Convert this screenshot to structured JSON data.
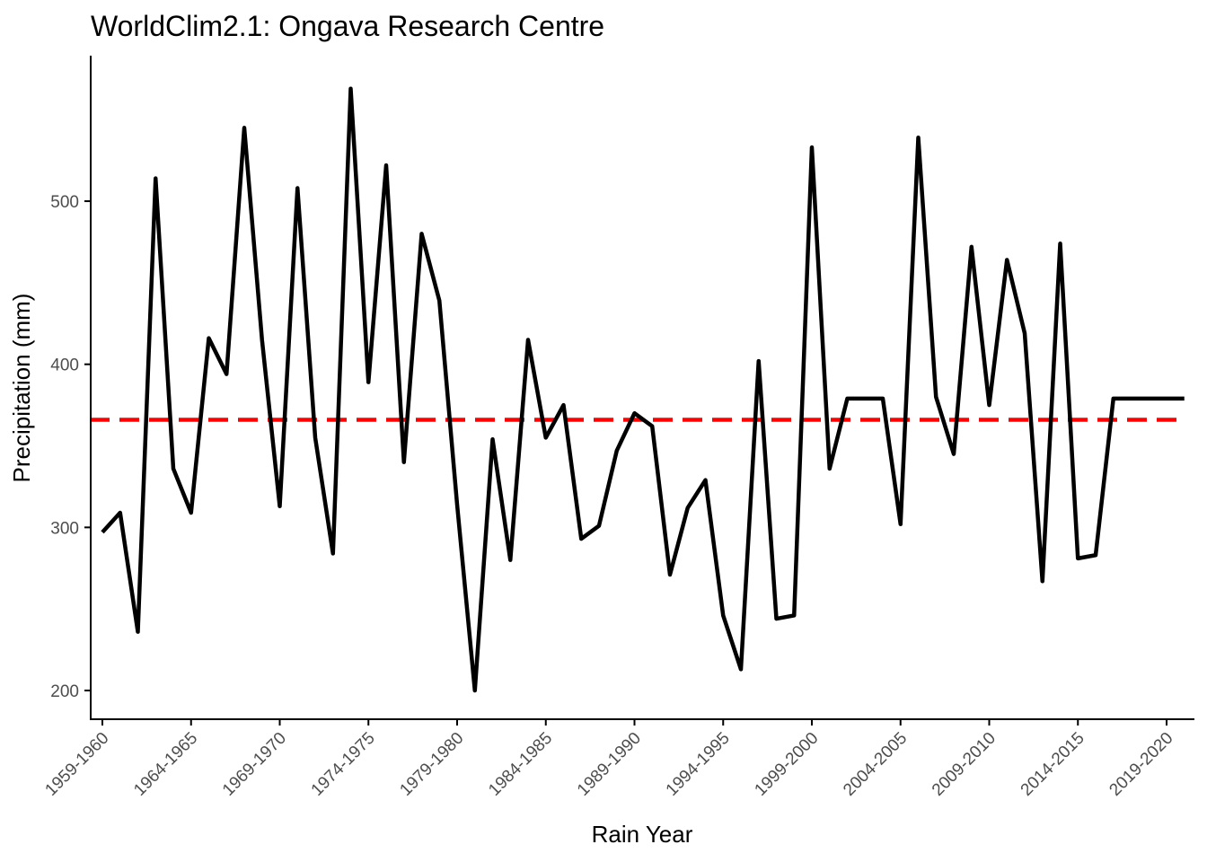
{
  "chart_data": {
    "type": "line",
    "title": "WorldClim2.1: Ongava Research Centre",
    "xlabel": "Rain Year",
    "ylabel": "Precipitation (mm)",
    "x_tick_labels": [
      "1959-1960",
      "1964-1965",
      "1969-1970",
      "1974-1975",
      "1979-1980",
      "1984-1985",
      "1989-1990",
      "1994-1995",
      "1999-2000",
      "2004-2005",
      "2009-2010",
      "2014-2015",
      "2019-2020"
    ],
    "y_ticks": [
      200,
      300,
      400,
      500
    ],
    "ylim": [
      190,
      575
    ],
    "x": [
      "1959-1960",
      "1960-1961",
      "1961-1962",
      "1962-1963",
      "1963-1964",
      "1964-1965",
      "1965-1966",
      "1966-1967",
      "1967-1968",
      "1968-1969",
      "1969-1970",
      "1970-1971",
      "1971-1972",
      "1972-1973",
      "1973-1974",
      "1974-1975",
      "1975-1976",
      "1976-1977",
      "1977-1978",
      "1978-1979",
      "1979-1980",
      "1980-1981",
      "1981-1982",
      "1982-1983",
      "1983-1984",
      "1984-1985",
      "1985-1986",
      "1986-1987",
      "1987-1988",
      "1988-1989",
      "1989-1990",
      "1990-1991",
      "1991-1992",
      "1992-1993",
      "1993-1994",
      "1994-1995",
      "1995-1996",
      "1996-1997",
      "1997-1998",
      "1998-1999",
      "1999-2000",
      "2000-2001",
      "2001-2002",
      "2002-2003",
      "2003-2004",
      "2004-2005",
      "2005-2006",
      "2006-2007",
      "2007-2008",
      "2008-2009",
      "2009-2010",
      "2010-2011",
      "2011-2012",
      "2012-2013",
      "2013-2014",
      "2014-2015",
      "2015-2016",
      "2016-2017",
      "2017-2018",
      "2018-2019",
      "2019-2020",
      "2020-2021"
    ],
    "series": [
      {
        "color": "#000000",
        "values": [
          297,
          309,
          236,
          514,
          336,
          309,
          416,
          394,
          545,
          415,
          313,
          508,
          355,
          284,
          569,
          389,
          522,
          340,
          480,
          439,
          314,
          200,
          354,
          280,
          415,
          355,
          375,
          293,
          301,
          347,
          370,
          362,
          271,
          312,
          329,
          246,
          213,
          402,
          244,
          246,
          533,
          336,
          379,
          379,
          379,
          302,
          539,
          380,
          345,
          472,
          375,
          464,
          419,
          267,
          474,
          281,
          283,
          379,
          379,
          379,
          379,
          379
        ]
      }
    ],
    "mean_line": {
      "value": 366,
      "color": "#ff0000",
      "style": "dashed"
    }
  }
}
